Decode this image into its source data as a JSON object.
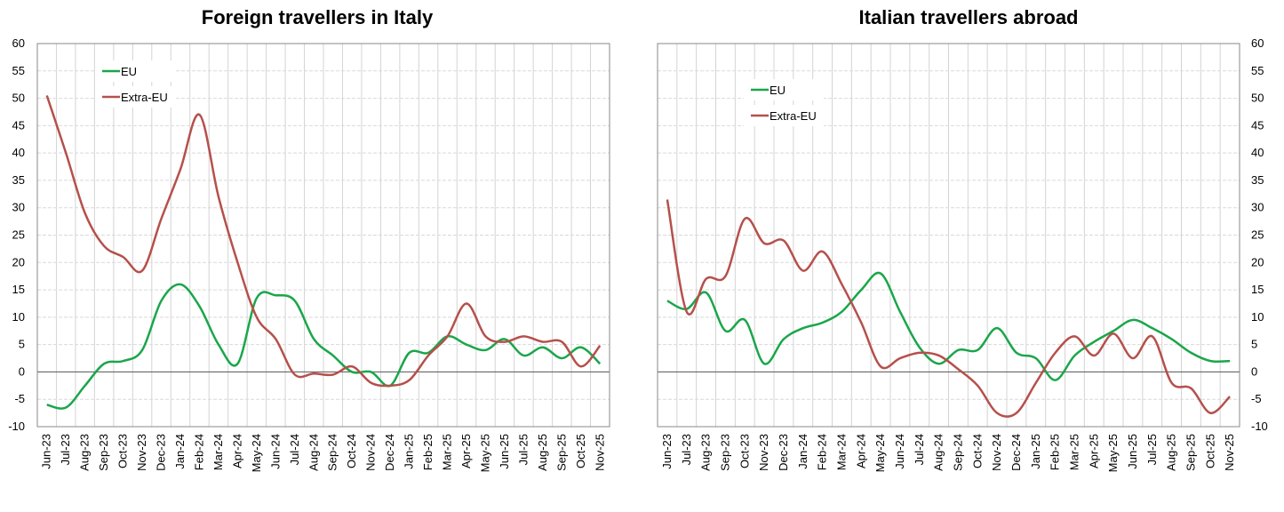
{
  "colors": {
    "eu": "#1aa64a",
    "extra_eu": "#b5504b"
  },
  "chart_data": [
    {
      "type": "line",
      "title": "Foreign travellers in Italy",
      "ylim": [
        -10,
        60
      ],
      "yticks": [
        -10,
        -5,
        0,
        5,
        10,
        15,
        20,
        25,
        30,
        35,
        40,
        45,
        50,
        55,
        60
      ],
      "y_axis_side": "left",
      "legend_placement": "top-left",
      "grid": true,
      "categories": [
        "Jun-23",
        "Jul-23",
        "Aug-23",
        "Sep-23",
        "Oct-23",
        "Nov-23",
        "Dec-23",
        "Jan-24",
        "Feb-24",
        "Mar-24",
        "Apr-24",
        "May-24",
        "Jun-24",
        "Jul-24",
        "Aug-24",
        "Sep-24",
        "Oct-24",
        "Nov-24",
        "Dec-24",
        "Jan-25",
        "Feb-25",
        "Mar-25",
        "Apr-25",
        "May-25",
        "Jun-25",
        "Jul-25",
        "Aug-25",
        "Sep-25",
        "Oct-25",
        "Nov-25"
      ],
      "series": [
        {
          "name": "EU",
          "color_key": "eu",
          "values": [
            -6,
            -6.5,
            -2.5,
            1.5,
            2,
            4,
            13,
            16,
            12,
            5,
            1.5,
            13.5,
            14,
            13,
            6,
            3,
            0,
            0,
            -2.5,
            3.5,
            3.5,
            6.5,
            5,
            4,
            6,
            3,
            4.5,
            2.5,
            4.5,
            1.5
          ]
        },
        {
          "name": "Extra-EU",
          "color_key": "extra_eu",
          "values": [
            50.5,
            40,
            29,
            23,
            21,
            18.5,
            28,
            37,
            47,
            32,
            20,
            10,
            6,
            -0.5,
            -0.3,
            -0.5,
            1,
            -2,
            -2.5,
            -1.5,
            3,
            6.5,
            12.5,
            6.5,
            5.5,
            6.5,
            5.5,
            5.5,
            1,
            4.8
          ]
        }
      ]
    },
    {
      "type": "line",
      "title": "Italian travellers abroad",
      "ylim": [
        -10,
        60
      ],
      "yticks": [
        -10,
        -5,
        0,
        5,
        10,
        15,
        20,
        25,
        30,
        35,
        40,
        45,
        50,
        55,
        60
      ],
      "y_axis_side": "right",
      "legend_placement": "top-left",
      "grid": true,
      "categories": [
        "Jun-23",
        "Jul-23",
        "Aug-23",
        "Sep-23",
        "Oct-23",
        "Nov-23",
        "Dec-23",
        "Jan-24",
        "Feb-24",
        "Mar-24",
        "Apr-24",
        "May-24",
        "Jun-24",
        "Jul-24",
        "Aug-24",
        "Sep-24",
        "Oct-24",
        "Nov-24",
        "Dec-24",
        "Jan-25",
        "Feb-25",
        "Mar-25",
        "Apr-25",
        "May-25",
        "Jun-25",
        "Jul-25",
        "Aug-25",
        "Sep-25",
        "Oct-25",
        "Nov-25"
      ],
      "series": [
        {
          "name": "EU",
          "color_key": "eu",
          "values": [
            13,
            11.5,
            14.5,
            7.5,
            9.5,
            1.5,
            6,
            8,
            9,
            11,
            15,
            18,
            11,
            4.5,
            1.5,
            4,
            4,
            8,
            3.5,
            2.5,
            -1.5,
            3,
            5.5,
            7.5,
            9.5,
            8,
            6,
            3.5,
            2,
            2
          ]
        },
        {
          "name": "Extra-EU",
          "color_key": "extra_eu",
          "values": [
            31.5,
            11,
            17,
            17.5,
            28,
            23.5,
            24,
            18.5,
            22,
            16,
            9,
            1,
            2.5,
            3.5,
            3,
            0.5,
            -2.5,
            -7.5,
            -7.5,
            -2,
            3.5,
            6.5,
            3,
            7,
            2.5,
            6.5,
            -2,
            -3,
            -7.5,
            -4.5
          ]
        }
      ]
    }
  ]
}
